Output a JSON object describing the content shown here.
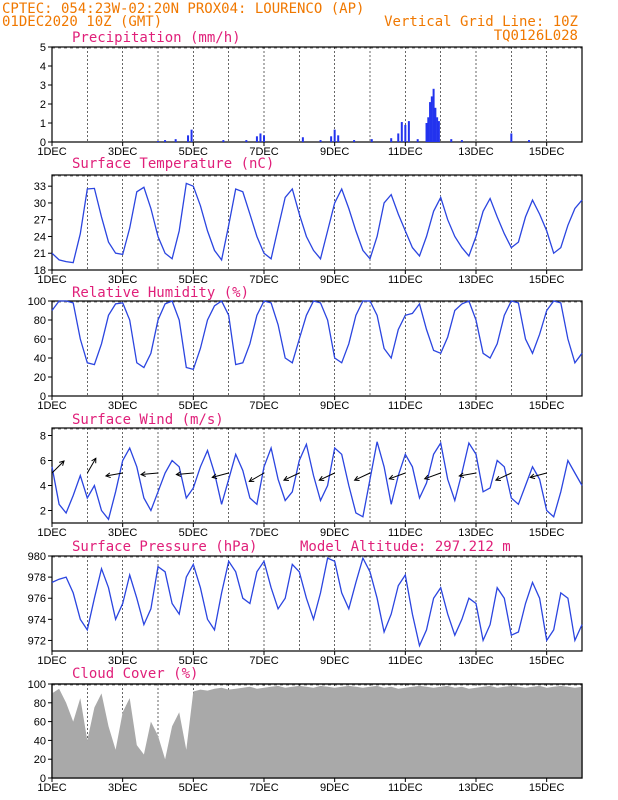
{
  "header": {
    "line1": "CPTEC:  054:23W-02:20N  PROX04: LOURENCO (AP)",
    "line2_left": "01DEC2020 10Z (GMT)",
    "line2_right": "Vertical Grid Line: 10Z",
    "line3_right": "TQ0126L028"
  },
  "x_labels": [
    "1DEC",
    "3DEC",
    "5DEC",
    "7DEC",
    "9DEC",
    "11DEC",
    "13DEC",
    "15DEC"
  ],
  "colors": {
    "header": "#f07800",
    "title": "#e0207a",
    "line": "#2b45e0",
    "bar": "#2233ee",
    "cloud": "#a9a9a9"
  },
  "chart_data": [
    {
      "id": "precip",
      "type": "bar",
      "title": "Precipitation (mm/h)",
      "ylim": [
        0,
        5
      ],
      "yticks": [
        0,
        1,
        2,
        3,
        4,
        5
      ],
      "bars": [
        [
          4.0,
          0.05
        ],
        [
          4.2,
          0.1
        ],
        [
          4.5,
          0.15
        ],
        [
          4.85,
          0.35
        ],
        [
          4.95,
          0.65
        ],
        [
          5.85,
          0.1
        ],
        [
          6.5,
          0.1
        ],
        [
          6.8,
          0.3
        ],
        [
          6.9,
          0.45
        ],
        [
          7.0,
          0.35
        ],
        [
          8.1,
          0.25
        ],
        [
          8.6,
          0.1
        ],
        [
          8.9,
          0.3
        ],
        [
          9.0,
          0.65
        ],
        [
          9.1,
          0.35
        ],
        [
          9.55,
          0.1
        ],
        [
          10.05,
          0.15
        ],
        [
          10.6,
          0.2
        ],
        [
          10.8,
          0.45
        ],
        [
          10.9,
          1.05
        ],
        [
          11.0,
          0.9
        ],
        [
          11.1,
          1.1
        ],
        [
          11.35,
          0.15
        ],
        [
          11.6,
          1.0
        ],
        [
          11.65,
          1.3
        ],
        [
          11.7,
          2.1
        ],
        [
          11.75,
          2.4
        ],
        [
          11.8,
          2.8
        ],
        [
          11.85,
          1.8
        ],
        [
          11.9,
          1.3
        ],
        [
          11.95,
          1.1
        ],
        [
          12.3,
          0.15
        ],
        [
          12.6,
          0.1
        ],
        [
          14.0,
          0.45
        ],
        [
          14.5,
          0.1
        ]
      ]
    },
    {
      "id": "temp",
      "type": "line",
      "title": "Surface Temperature (nC)",
      "ylim": [
        18,
        35
      ],
      "yticks": [
        18,
        21,
        24,
        27,
        30,
        33
      ],
      "x": [
        1.0,
        1.2,
        1.4,
        1.6,
        1.8,
        2.0,
        2.2,
        2.4,
        2.6,
        2.8,
        3.0,
        3.2,
        3.4,
        3.6,
        3.8,
        4.0,
        4.2,
        4.4,
        4.6,
        4.8,
        5.0,
        5.2,
        5.4,
        5.6,
        5.8,
        6.0,
        6.2,
        6.4,
        6.6,
        6.8,
        7.0,
        7.2,
        7.4,
        7.6,
        7.8,
        8.0,
        8.2,
        8.4,
        8.6,
        8.8,
        9.0,
        9.2,
        9.4,
        9.6,
        9.8,
        10.0,
        10.2,
        10.4,
        10.6,
        10.8,
        11.0,
        11.2,
        11.4,
        11.6,
        11.8,
        12.0,
        12.2,
        12.4,
        12.6,
        12.8,
        13.0,
        13.2,
        13.4,
        13.6,
        13.8,
        14.0,
        14.2,
        14.4,
        14.6,
        14.8,
        15.0,
        15.2,
        15.4,
        15.6,
        15.8,
        16.0
      ],
      "y": [
        21,
        19.8,
        19.5,
        19.3,
        24.5,
        32.5,
        32.6,
        27.5,
        23,
        21,
        20.8,
        25.5,
        32,
        32.8,
        29,
        24,
        21,
        20,
        25,
        33.5,
        33,
        29.5,
        25,
        21.5,
        19.8,
        26,
        32.5,
        32,
        28,
        24,
        21,
        20,
        25.5,
        31,
        32.5,
        28,
        24,
        21.5,
        20,
        25,
        30,
        32.5,
        29,
        25,
        21.5,
        20,
        24,
        30,
        31.5,
        28,
        25,
        22,
        20.5,
        24,
        28.5,
        31,
        27,
        24,
        22,
        20.5,
        24,
        28.5,
        30.8,
        27.5,
        24.5,
        22,
        23,
        27.5,
        30.5,
        28,
        25,
        21,
        22,
        26,
        29,
        30.5
      ],
      "series_name": ""
    },
    {
      "id": "rh",
      "type": "line",
      "title": "Relative Humidity (%)",
      "ylim": [
        0,
        100
      ],
      "yticks": [
        0,
        20,
        40,
        60,
        80,
        100
      ],
      "x": [
        1.0,
        1.2,
        1.4,
        1.6,
        1.8,
        2.0,
        2.2,
        2.4,
        2.6,
        2.8,
        3.0,
        3.2,
        3.4,
        3.6,
        3.8,
        4.0,
        4.2,
        4.4,
        4.6,
        4.8,
        5.0,
        5.2,
        5.4,
        5.6,
        5.8,
        6.0,
        6.2,
        6.4,
        6.6,
        6.8,
        7.0,
        7.2,
        7.4,
        7.6,
        7.8,
        8.0,
        8.2,
        8.4,
        8.6,
        8.8,
        9.0,
        9.2,
        9.4,
        9.6,
        9.8,
        10.0,
        10.2,
        10.4,
        10.6,
        10.8,
        11.0,
        11.2,
        11.4,
        11.6,
        11.8,
        12.0,
        12.2,
        12.4,
        12.6,
        12.8,
        13.0,
        13.2,
        13.4,
        13.6,
        13.8,
        14.0,
        14.2,
        14.4,
        14.6,
        14.8,
        15.0,
        15.2,
        15.4,
        15.6,
        15.8,
        16.0
      ],
      "y": [
        90,
        100,
        100,
        98,
        60,
        35,
        33,
        55,
        85,
        97,
        98,
        80,
        35,
        30,
        45,
        80,
        97,
        100,
        80,
        30,
        28,
        50,
        80,
        95,
        100,
        85,
        33,
        35,
        55,
        85,
        100,
        98,
        75,
        40,
        35,
        60,
        85,
        100,
        98,
        80,
        40,
        35,
        55,
        85,
        100,
        100,
        85,
        50,
        40,
        70,
        85,
        87,
        97,
        70,
        48,
        45,
        62,
        90,
        97,
        100,
        80,
        45,
        40,
        55,
        85,
        100,
        98,
        60,
        45,
        65,
        90,
        100,
        98,
        60,
        35,
        45
      ],
      "series_name": ""
    },
    {
      "id": "wind",
      "type": "line",
      "title": "Surface Wind (m/s)",
      "ylim": [
        1,
        8.6
      ],
      "yticks": [
        2,
        4,
        6,
        8
      ],
      "x": [
        1.0,
        1.2,
        1.4,
        1.6,
        1.8,
        2.0,
        2.2,
        2.4,
        2.6,
        2.8,
        3.0,
        3.2,
        3.4,
        3.6,
        3.8,
        4.0,
        4.2,
        4.4,
        4.6,
        4.8,
        5.0,
        5.2,
        5.4,
        5.6,
        5.8,
        6.0,
        6.2,
        6.4,
        6.6,
        6.8,
        7.0,
        7.2,
        7.4,
        7.6,
        7.8,
        8.0,
        8.2,
        8.4,
        8.6,
        8.8,
        9.0,
        9.2,
        9.4,
        9.6,
        9.8,
        10.0,
        10.2,
        10.4,
        10.6,
        10.8,
        11.0,
        11.2,
        11.4,
        11.6,
        11.8,
        12.0,
        12.2,
        12.4,
        12.6,
        12.8,
        13.0,
        13.2,
        13.4,
        13.6,
        13.8,
        14.0,
        14.2,
        14.4,
        14.6,
        14.8,
        15.0,
        15.2,
        15.4,
        15.6,
        15.8,
        16.0
      ],
      "y": [
        5.5,
        2.5,
        1.8,
        3.2,
        4.8,
        3.0,
        4.0,
        2.0,
        1.3,
        3.5,
        6.0,
        7.0,
        5.5,
        3.0,
        2.0,
        3.5,
        5.0,
        6.0,
        5.5,
        3.0,
        3.8,
        5.5,
        6.8,
        5.0,
        2.5,
        4.5,
        6.5,
        5.2,
        3.0,
        2.5,
        5.5,
        7.0,
        4.5,
        2.8,
        3.5,
        6.0,
        7.3,
        4.8,
        2.8,
        4.0,
        7.0,
        6.5,
        4.0,
        1.8,
        1.5,
        4.5,
        7.5,
        5.5,
        2.5,
        4.8,
        6.5,
        5.5,
        3.0,
        4.2,
        6.5,
        7.4,
        4.5,
        2.8,
        5.0,
        7.4,
        6.5,
        3.5,
        3.8,
        6.0,
        5.5,
        3.0,
        2.5,
        4.0,
        5.5,
        4.5,
        2.0,
        1.5,
        3.5,
        6.0,
        5.0,
        4.0
      ],
      "series_name": "",
      "arrows": [
        [
          1.0,
          5.0,
          45
        ],
        [
          2.0,
          5.0,
          60
        ],
        [
          3.0,
          5.0,
          190
        ],
        [
          4.0,
          5.0,
          185
        ],
        [
          5.0,
          5.0,
          185
        ],
        [
          6.0,
          5.0,
          195
        ],
        [
          7.0,
          5.0,
          210
        ],
        [
          8.0,
          5.0,
          205
        ],
        [
          9.0,
          5.0,
          205
        ],
        [
          10.0,
          5.0,
          205
        ],
        [
          11.0,
          5.0,
          200
        ],
        [
          12.0,
          5.0,
          200
        ],
        [
          13.0,
          5.0,
          190
        ],
        [
          14.0,
          5.0,
          205
        ],
        [
          15.0,
          5.0,
          195
        ]
      ]
    },
    {
      "id": "press",
      "type": "line",
      "title": "Surface Pressure (hPa)",
      "annotation": "Model Altitude: 297.212 m",
      "ylim": [
        971,
        980
      ],
      "yticks": [
        972,
        974,
        976,
        978,
        980
      ],
      "x": [
        1.0,
        1.2,
        1.4,
        1.6,
        1.8,
        2.0,
        2.2,
        2.4,
        2.6,
        2.8,
        3.0,
        3.2,
        3.4,
        3.6,
        3.8,
        4.0,
        4.2,
        4.4,
        4.6,
        4.8,
        5.0,
        5.2,
        5.4,
        5.6,
        5.8,
        6.0,
        6.2,
        6.4,
        6.6,
        6.8,
        7.0,
        7.2,
        7.4,
        7.6,
        7.8,
        8.0,
        8.2,
        8.4,
        8.6,
        8.8,
        9.0,
        9.2,
        9.4,
        9.6,
        9.8,
        10.0,
        10.2,
        10.4,
        10.6,
        10.8,
        11.0,
        11.2,
        11.4,
        11.6,
        11.8,
        12.0,
        12.2,
        12.4,
        12.6,
        12.8,
        13.0,
        13.2,
        13.4,
        13.6,
        13.8,
        14.0,
        14.2,
        14.4,
        14.6,
        14.8,
        15.0,
        15.2,
        15.4,
        15.6,
        15.8,
        16.0
      ],
      "y": [
        977.5,
        977.8,
        978.0,
        976.5,
        974.0,
        973.0,
        976.0,
        978.8,
        977.0,
        974.0,
        975.5,
        978.2,
        976.0,
        973.5,
        975.0,
        979.0,
        978.5,
        975.5,
        974.5,
        978.0,
        979.2,
        977.0,
        974.0,
        973.0,
        976.5,
        979.5,
        978.5,
        976.0,
        975.5,
        978.5,
        979.5,
        977.0,
        975.0,
        976.0,
        979.2,
        978.5,
        976.0,
        974.0,
        976.5,
        979.8,
        979.5,
        976.5,
        975.0,
        977.5,
        979.8,
        978.5,
        976.0,
        972.8,
        974.5,
        977.2,
        978.2,
        974.5,
        971.5,
        973.0,
        976.0,
        977.0,
        974.5,
        972.5,
        974.0,
        976.0,
        975.5,
        972.0,
        973.5,
        977.0,
        976.0,
        972.5,
        972.8,
        975.5,
        977.5,
        976.0,
        972.0,
        973.0,
        976.5,
        976.0,
        972.0,
        973.5
      ],
      "series_name": ""
    },
    {
      "id": "cloud",
      "type": "area",
      "title": "Cloud Cover (%)",
      "ylim": [
        0,
        100
      ],
      "yticks": [
        0,
        20,
        40,
        60,
        80,
        100
      ],
      "x": [
        1.0,
        1.2,
        1.4,
        1.6,
        1.8,
        2.0,
        2.2,
        2.4,
        2.6,
        2.8,
        3.0,
        3.2,
        3.4,
        3.6,
        3.8,
        4.0,
        4.2,
        4.4,
        4.6,
        4.8,
        5.0,
        5.2,
        5.4,
        5.6,
        5.8,
        6.0,
        6.2,
        6.4,
        6.6,
        6.8,
        7.0,
        7.2,
        7.4,
        7.6,
        7.8,
        8.0,
        8.2,
        8.4,
        8.6,
        8.8,
        9.0,
        9.2,
        9.4,
        9.6,
        9.8,
        10.0,
        10.2,
        10.4,
        10.6,
        10.8,
        11.0,
        11.2,
        11.4,
        11.6,
        11.8,
        12.0,
        12.2,
        12.4,
        12.6,
        12.8,
        13.0,
        13.2,
        13.4,
        13.6,
        13.8,
        14.0,
        14.2,
        14.4,
        14.6,
        14.8,
        15.0,
        15.2,
        15.4,
        15.6,
        15.8,
        16.0
      ],
      "y": [
        90,
        95,
        80,
        60,
        85,
        40,
        75,
        90,
        55,
        30,
        70,
        85,
        35,
        25,
        60,
        45,
        20,
        55,
        70,
        30,
        92,
        94,
        93,
        95,
        96,
        94,
        95,
        96,
        97,
        95,
        96,
        97,
        98,
        96,
        97,
        98,
        97,
        96,
        98,
        97,
        96,
        97,
        98,
        97,
        96,
        97,
        98,
        96,
        97,
        95,
        96,
        97,
        98,
        97,
        96,
        97,
        98,
        96,
        97,
        95,
        96,
        97,
        98,
        96,
        97,
        98,
        97,
        96,
        97,
        98,
        96,
        97,
        98,
        97,
        96,
        97
      ],
      "series_name": ""
    }
  ]
}
